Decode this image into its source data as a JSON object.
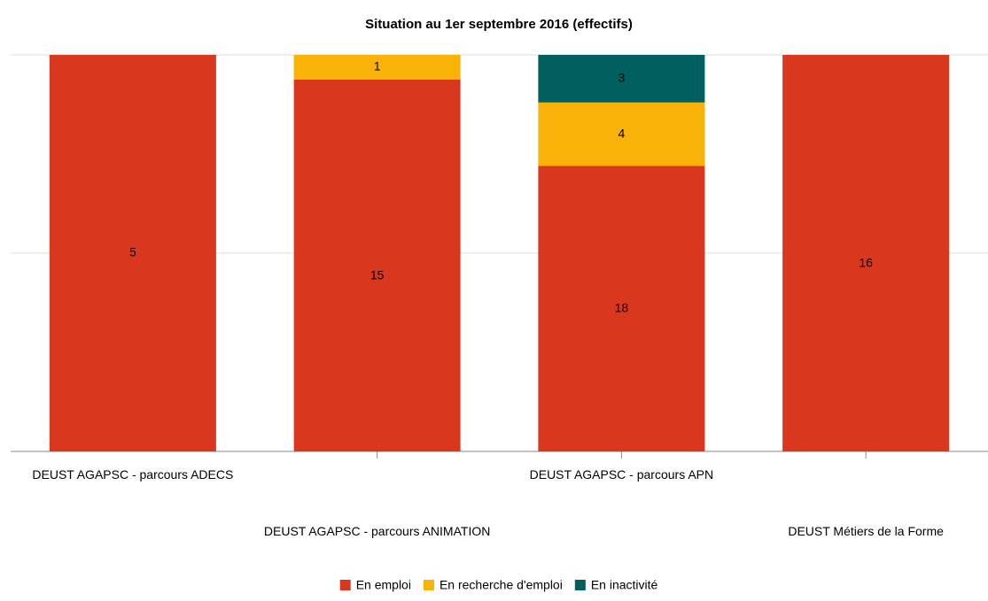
{
  "chart_data": {
    "type": "bar",
    "stacking": "percent",
    "title": "Situation au 1er septembre 2016 (effectifs)",
    "categories": [
      "DEUST AGAPSC - parcours ADECS",
      "DEUST AGAPSC - parcours ANIMATION",
      "DEUST AGAPSC - parcours APN",
      "DEUST Métiers de la Forme"
    ],
    "series": [
      {
        "name": "En emploi",
        "color": "#d9381e",
        "values": [
          5,
          15,
          18,
          16
        ]
      },
      {
        "name": "En recherche d'emploi",
        "color": "#f9b208",
        "values": [
          null,
          1,
          4,
          null
        ]
      },
      {
        "name": "En inactivité",
        "color": "#005f5f",
        "values": [
          null,
          null,
          3,
          null
        ]
      }
    ],
    "ylim": [
      0,
      100
    ],
    "yticks": [
      0,
      50,
      100
    ],
    "grid": true
  }
}
